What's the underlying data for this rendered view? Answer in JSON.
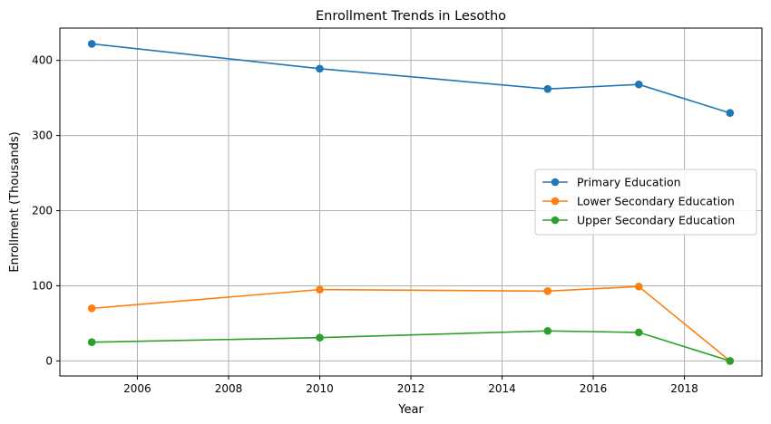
{
  "chart_data": {
    "type": "line",
    "title": "Enrollment Trends in Lesotho",
    "xlabel": "Year",
    "ylabel": "Enrollment (Thousands)",
    "xlim": [
      2004.3,
      2019.7
    ],
    "ylim": [
      -20,
      443
    ],
    "xticks": [
      2006,
      2008,
      2010,
      2012,
      2014,
      2016,
      2018
    ],
    "xtick_labels": [
      "2006",
      "2008",
      "2010",
      "2012",
      "2014",
      "2016",
      "2018"
    ],
    "yticks": [
      0,
      100,
      200,
      300,
      400
    ],
    "ytick_labels": [
      "0",
      "100",
      "200",
      "300",
      "400"
    ],
    "grid": true,
    "legend_position": "center-right",
    "x": [
      2005,
      2010,
      2015,
      2017,
      2019
    ],
    "series": [
      {
        "name": "Primary Education",
        "color": "#1f77b4",
        "values": [
          422,
          389,
          362,
          368,
          330
        ]
      },
      {
        "name": "Lower Secondary Education",
        "color": "#ff7f0e",
        "values": [
          70,
          95,
          93,
          99,
          0
        ]
      },
      {
        "name": "Upper Secondary Education",
        "color": "#2ca02c",
        "values": [
          25,
          31,
          40,
          38,
          0
        ]
      }
    ]
  }
}
